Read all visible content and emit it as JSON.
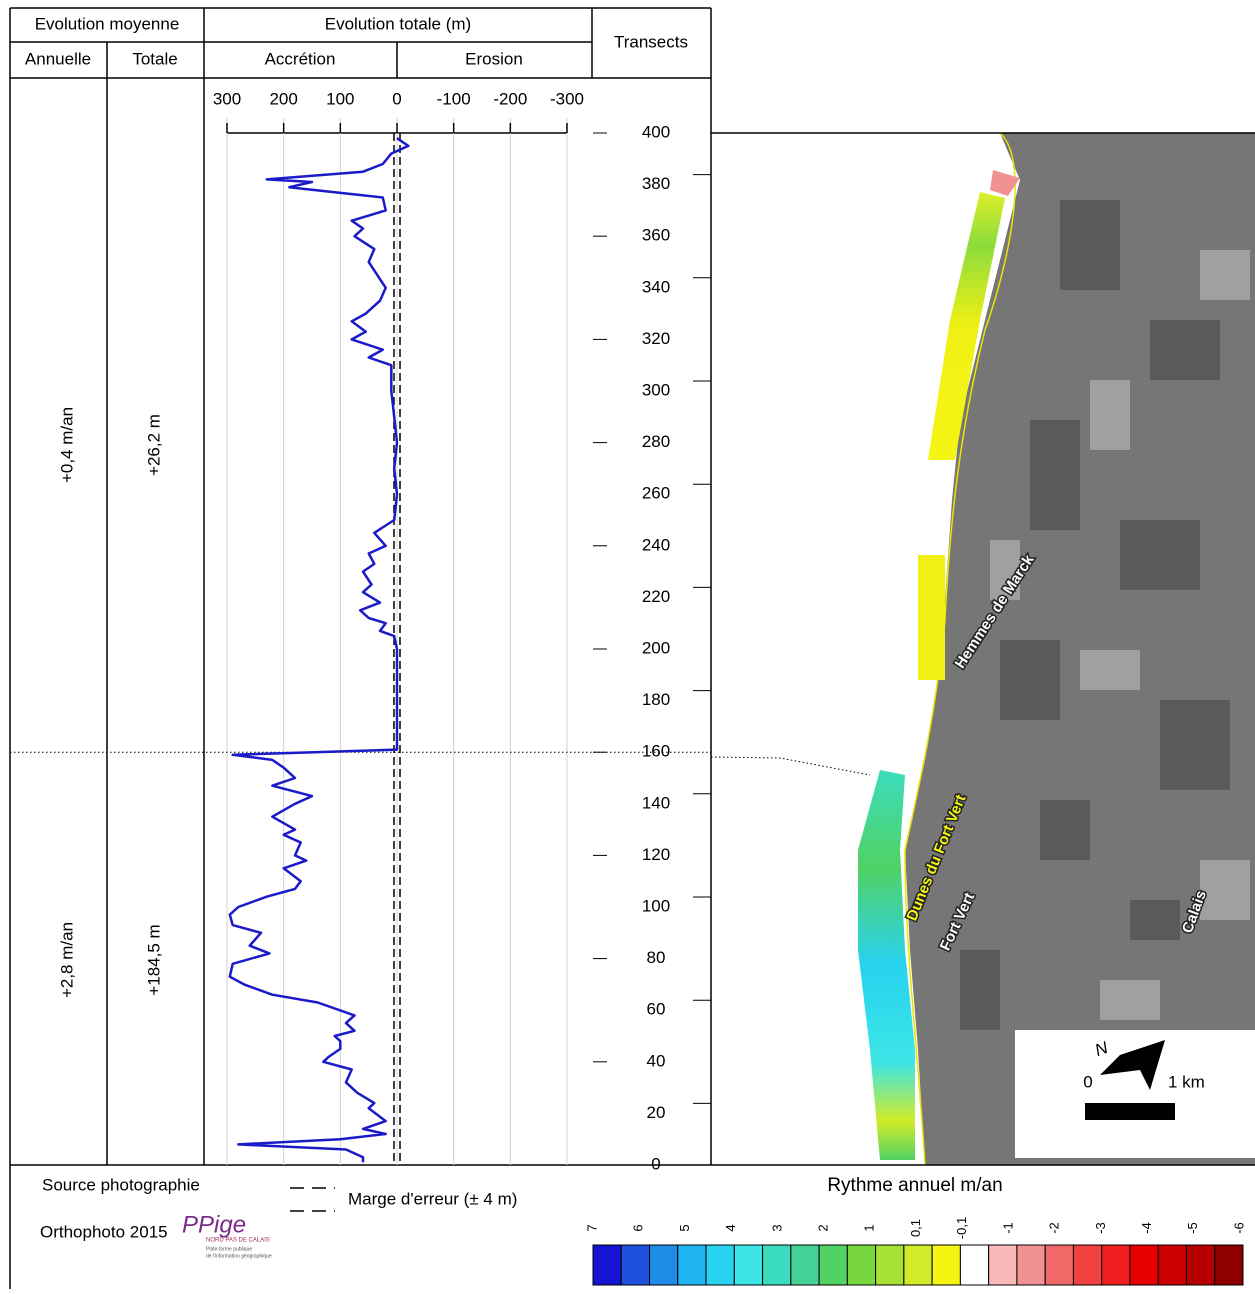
{
  "table": {
    "header": {
      "evolution_moyenne": "Evolution moyenne",
      "evolution_totale": "Evolution totale (m)",
      "annuelle": "Annuelle",
      "totale": "Totale",
      "accretion": "Accrétion",
      "erosion": "Erosion",
      "transects": "Transects"
    },
    "segments": [
      {
        "annuelle": "+0,4 m/an",
        "totale": "+26,2 m"
      },
      {
        "annuelle": "+2,8 m/an",
        "totale": "+184,5 m"
      }
    ]
  },
  "chart_data": {
    "type": "line",
    "color": "#1a1ac8",
    "grid": true,
    "x": [
      1,
      3,
      6,
      8,
      10,
      12,
      14,
      17,
      22,
      24,
      28,
      32,
      37,
      40,
      42,
      45,
      48,
      50,
      52,
      55,
      58,
      63,
      66,
      70,
      73,
      78,
      82,
      85,
      90,
      93,
      97,
      100,
      104,
      107,
      110,
      115,
      118,
      120,
      125,
      128,
      130,
      135,
      140,
      143,
      147,
      150,
      154,
      157,
      159,
      161,
      180,
      200,
      205,
      207,
      210,
      212,
      215,
      218,
      222,
      225,
      230,
      233,
      237,
      240,
      245,
      250,
      260,
      270,
      280,
      290,
      300,
      310,
      313,
      316,
      320,
      323,
      327,
      330,
      335,
      340,
      345,
      350,
      355,
      360,
      363,
      366,
      370,
      375,
      377,
      379,
      381,
      382,
      385,
      388,
      392,
      395,
      398
    ],
    "values": [
      60,
      60,
      90,
      280,
      100,
      20,
      60,
      20,
      50,
      40,
      70,
      90,
      80,
      130,
      120,
      100,
      100,
      110,
      75,
      90,
      75,
      140,
      220,
      270,
      295,
      290,
      225,
      260,
      240,
      290,
      295,
      280,
      230,
      180,
      170,
      200,
      160,
      180,
      170,
      200,
      180,
      220,
      180,
      150,
      220,
      180,
      200,
      220,
      290,
      0,
      0,
      0,
      5,
      30,
      20,
      50,
      65,
      30,
      60,
      45,
      60,
      40,
      50,
      20,
      40,
      5,
      0,
      5,
      0,
      5,
      10,
      10,
      50,
      25,
      80,
      55,
      80,
      55,
      30,
      20,
      35,
      50,
      40,
      75,
      60,
      80,
      20,
      25,
      110,
      190,
      150,
      230,
      60,
      25,
      10,
      -20,
      0
    ],
    "xlim": [
      0,
      400
    ],
    "xticks": [
      0,
      20,
      40,
      60,
      80,
      100,
      120,
      140,
      160,
      180,
      200,
      220,
      240,
      260,
      280,
      300,
      320,
      340,
      360,
      380,
      400
    ],
    "ylim": [
      300,
      -300
    ],
    "yticks": [
      300,
      200,
      100,
      0,
      -100,
      -200,
      -300
    ]
  },
  "footer": {
    "source": "Source photographie",
    "orthophoto": "Orthophoto 2015",
    "logo": "PPige",
    "logo_region": "NORD PAS DE CALAIS",
    "logo_sub1": "Plate-forme publique",
    "logo_sub2": "de l'information géographique",
    "error_margin": "Marge d'erreur (± 4 m)"
  },
  "map": {
    "labels": [
      "Hemmes de Marck",
      "Dunes du Fort Vert",
      "Fort Vert",
      "Calais"
    ],
    "scale_start": "0",
    "scale_end": "1 km"
  },
  "legend": {
    "title": "Rythme annuel m/an",
    "labels": [
      "7",
      "6",
      "5",
      "4",
      "3",
      "2",
      "1",
      "0,1",
      "-0,1",
      "-1",
      "-2",
      "-3",
      "-4",
      "-5",
      "-6"
    ],
    "colors": [
      "#1414d2",
      "#1e50dc",
      "#1e8ce6",
      "#1eb4f0",
      "#28d2f0",
      "#3ce6e6",
      "#3cdcbe",
      "#46d296",
      "#50d264",
      "#78d73c",
      "#a5e132",
      "#d2eb28",
      "#f5f514",
      "#ffffff",
      "#f7b9b9",
      "#f29191",
      "#f06969",
      "#f04141",
      "#f01e1e",
      "#e60000",
      "#cd0000",
      "#b40000",
      "#8c0000"
    ]
  }
}
